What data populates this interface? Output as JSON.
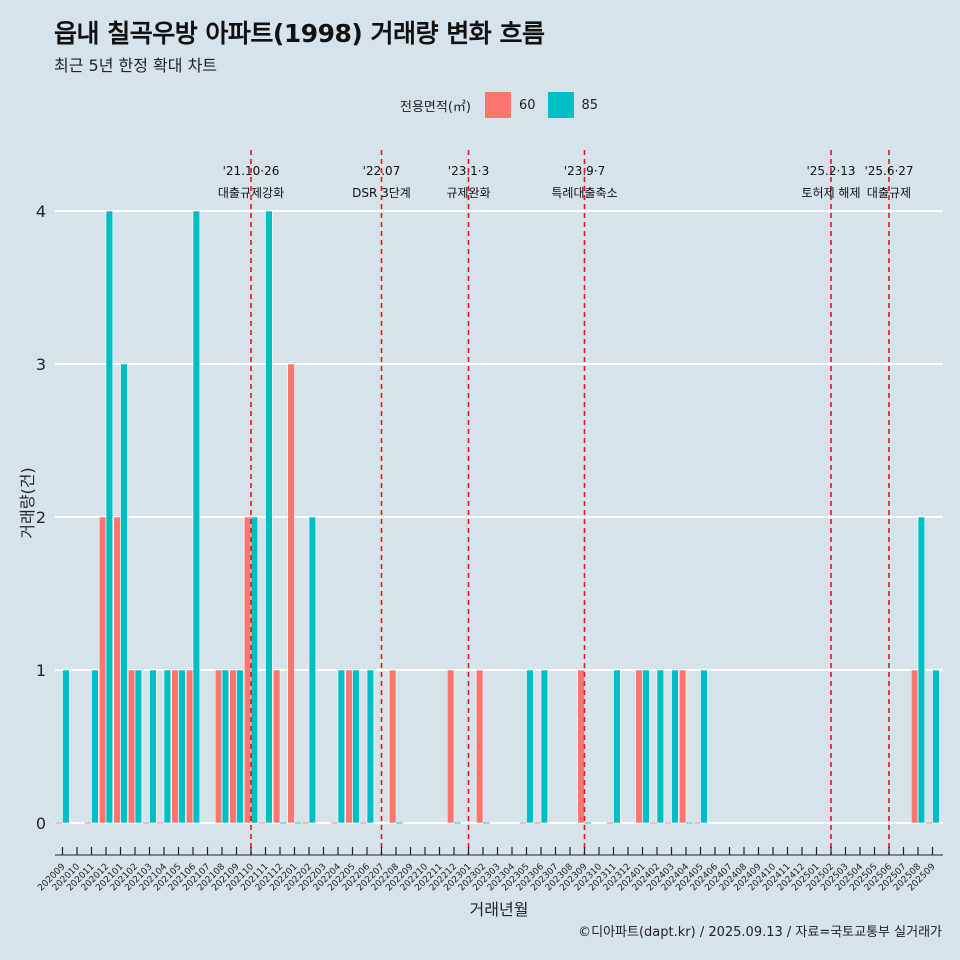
{
  "chart_data": {
    "type": "bar",
    "title": "읍내 칠곡우방 아파트(1998) 거래량 변화 흐름",
    "subtitle": "최근 5년 한정 확대 차트",
    "xlabel": "거래년월",
    "ylabel": "거래량(건)",
    "ylim": [
      0,
      4
    ],
    "y_ticks": [
      "0",
      "1",
      "2",
      "3",
      "4"
    ],
    "grid": "horizontal",
    "legend": {
      "title": "전용면적(㎡)",
      "position": "top",
      "entries": [
        {
          "label": "60",
          "color": "#f8766d"
        },
        {
          "label": "85",
          "color": "#00bfc4"
        }
      ]
    },
    "categories": [
      "202009",
      "202010",
      "202011",
      "202012",
      "202101",
      "202102",
      "202103",
      "202104",
      "202105",
      "202106",
      "202107",
      "202108",
      "202109",
      "202110",
      "202111",
      "202112",
      "202201",
      "202202",
      "202203",
      "202204",
      "202205",
      "202206",
      "202207",
      "202208",
      "202209",
      "202210",
      "202211",
      "202212",
      "202301",
      "202302",
      "202303",
      "202304",
      "202305",
      "202306",
      "202307",
      "202308",
      "202309",
      "202310",
      "202311",
      "202312",
      "202401",
      "202402",
      "202403",
      "202404",
      "202405",
      "202406",
      "202407",
      "202408",
      "202409",
      "202410",
      "202411",
      "202412",
      "202501",
      "202502",
      "202503",
      "202504",
      "202505",
      "202506",
      "202507",
      "202508",
      "202509"
    ],
    "series": [
      {
        "name": "60",
        "color": "#f8766d",
        "values": [
          0,
          0,
          0,
          2,
          2,
          1,
          0,
          0,
          1,
          1,
          0,
          1,
          1,
          2,
          0,
          1,
          3,
          0,
          0,
          0,
          1,
          0,
          0,
          1,
          0,
          0,
          0,
          1,
          0,
          1,
          0,
          0,
          0,
          0,
          0,
          0,
          1,
          0,
          0,
          0,
          1,
          0,
          0,
          1,
          0,
          0,
          0,
          0,
          0,
          0,
          0,
          0,
          0,
          0,
          0,
          0,
          0,
          0,
          0,
          1,
          0
        ]
      },
      {
        "name": "85",
        "color": "#00bfc4",
        "values": [
          1,
          0,
          1,
          4,
          3,
          1,
          1,
          1,
          1,
          4,
          0,
          1,
          1,
          2,
          4,
          0,
          0,
          2,
          0,
          1,
          1,
          1,
          0,
          0,
          0,
          0,
          0,
          0,
          0,
          0,
          0,
          0,
          1,
          1,
          0,
          0,
          0,
          0,
          1,
          0,
          1,
          1,
          1,
          0,
          1,
          0,
          0,
          0,
          0,
          0,
          0,
          0,
          0,
          0,
          0,
          0,
          0,
          0,
          0,
          2,
          1
        ]
      }
    ],
    "events": [
      {
        "at": "202110",
        "date": "'21.10·26",
        "label": "대출규제강화"
      },
      {
        "at": "202207",
        "date": "'22.07",
        "label": "DSR 3단계"
      },
      {
        "at": "202301",
        "date": "'23.1·3",
        "label": "규제완화"
      },
      {
        "at": "202309",
        "date": "'23.9·7",
        "label": "특례대출축소"
      },
      {
        "at": "202502",
        "date": "'25.2·13",
        "label": "토허제 해제"
      },
      {
        "at": "202506",
        "date": "'25.6·27",
        "label": "대출규제"
      }
    ],
    "event_line_color": "#e8141e",
    "caption": "©디아파트(dapt.kr) / 2025.09.13 / 자료=국토교통부 실거래가"
  }
}
